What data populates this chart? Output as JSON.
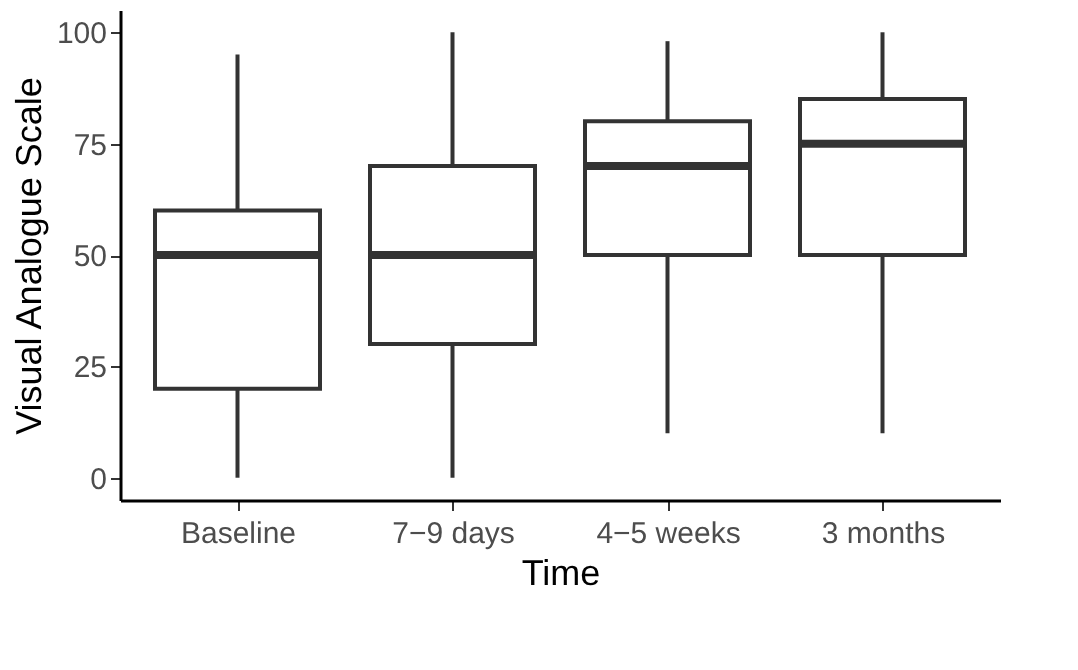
{
  "chart_data": {
    "type": "box",
    "xlabel": "Time",
    "ylabel": "Visual Analogue Scale",
    "categories": [
      "Baseline",
      "7−9 days",
      "4−5 weeks",
      "3 months"
    ],
    "boxes": [
      {
        "low": 0,
        "q1": 20,
        "median": 50,
        "q3": 60,
        "high": 95
      },
      {
        "low": 0,
        "q1": 30,
        "median": 50,
        "q3": 70,
        "high": 100
      },
      {
        "low": 10,
        "q1": 50,
        "median": 70,
        "q3": 80,
        "high": 98
      },
      {
        "low": 10,
        "q1": 50,
        "median": 75,
        "q3": 85,
        "high": 100
      }
    ],
    "ylim": [
      -5,
      105
    ],
    "yticks": [
      0,
      25,
      50,
      75,
      100
    ],
    "grid": false
  }
}
